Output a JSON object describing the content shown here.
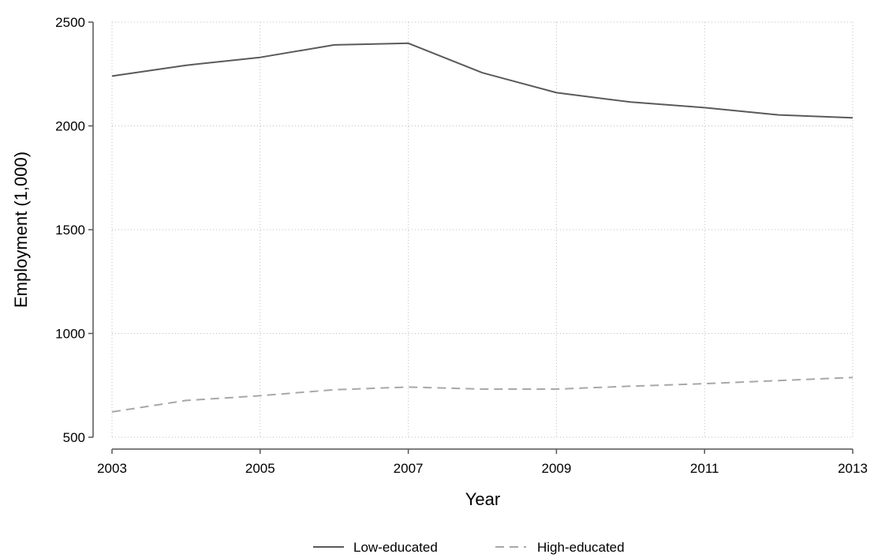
{
  "chart_data": {
    "type": "line",
    "xlabel": "Year",
    "ylabel": "Employment (1,000)",
    "xlim": [
      2003,
      2013
    ],
    "ylim": [
      500,
      2500
    ],
    "x_ticks": [
      2003,
      2005,
      2007,
      2009,
      2011,
      2013
    ],
    "y_ticks": [
      500,
      1000,
      1500,
      2000,
      2500
    ],
    "grid": true,
    "legend_position": "bottom",
    "x": [
      2003,
      2004,
      2005,
      2006,
      2007,
      2008,
      2009,
      2010,
      2011,
      2012,
      2013
    ],
    "series": [
      {
        "name": "Low-educated",
        "style": "solid",
        "color": "#5a5a5a",
        "values": [
          2240,
          2292,
          2330,
          2390,
          2398,
          2256,
          2160,
          2115,
          2088,
          2053,
          2039
        ]
      },
      {
        "name": "High-educated",
        "style": "dashed",
        "color": "#a8a8a8",
        "values": [
          622,
          677,
          700,
          729,
          742,
          732,
          732,
          746,
          758,
          773,
          788
        ]
      }
    ]
  }
}
